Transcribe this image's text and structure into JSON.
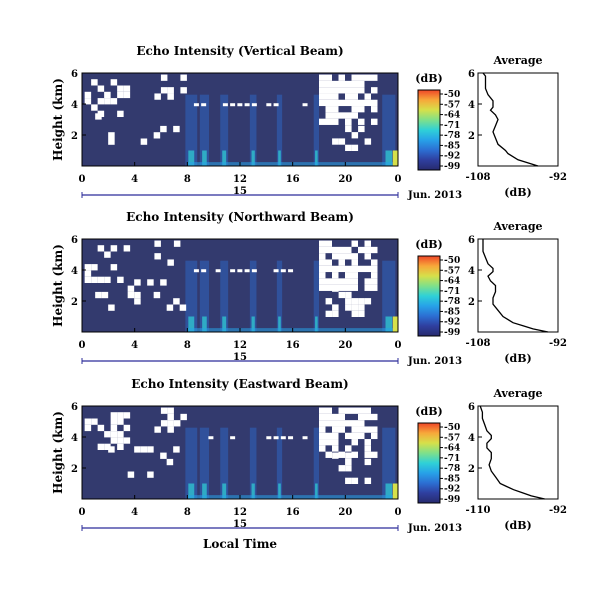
{
  "figure": {
    "xlabel": "Local Time",
    "date_label": "Jun. 2013",
    "day_label": "15"
  },
  "colors": {
    "background_field": "#333a6e",
    "no_data": "#ffffff",
    "colormap": [
      "#272a6e",
      "#2f3f9f",
      "#2c6fd3",
      "#27a2e8",
      "#2fd1d7",
      "#7fe08a",
      "#d6e04a",
      "#f7a83a",
      "#ef4628"
    ]
  },
  "chart_data": [
    {
      "type": "heatmap",
      "title": "Echo Intensity (Vertical Beam)",
      "ylabel": "Height (km)",
      "x_ticks": [
        "0",
        "4",
        "8",
        "12",
        "16",
        "20",
        "0"
      ],
      "xlim": [
        0,
        24
      ],
      "y_ticks": [
        "2",
        "4",
        "6"
      ],
      "ylim": [
        0,
        6
      ],
      "colorbar": {
        "label": "(dB)",
        "ticks": [
          "-50",
          "-57",
          "-64",
          "-71",
          "-78",
          "-85",
          "-92",
          "-99"
        ]
      },
      "average_profile": {
        "title": "Average",
        "xlabel": "(dB)",
        "x_ticks": [
          "-108",
          "-92"
        ],
        "xlim": [
          -108,
          -92
        ],
        "y_ticks": [
          "2",
          "4",
          "6"
        ],
        "ylim": [
          0,
          6
        ],
        "x": [
          -96,
          -98,
          -100,
          -101,
          -102,
          -102.5,
          -104,
          -104.5,
          -105,
          -104.5,
          -104,
          -104.5,
          -105.5,
          -105,
          -105,
          -105,
          -106,
          -106.5,
          -106.5,
          -106.5,
          -107
        ],
        "y": [
          0,
          0.2,
          0.4,
          0.6,
          0.8,
          1,
          1.4,
          1.8,
          2.2,
          2.6,
          3.0,
          3.3,
          3.6,
          3.8,
          4.0,
          4.2,
          4.6,
          5.0,
          5.4,
          5.8,
          6.0
        ]
      }
    },
    {
      "type": "heatmap",
      "title": "Echo Intensity (Northward Beam)",
      "ylabel": "Height (km)",
      "x_ticks": [
        "0",
        "4",
        "8",
        "12",
        "16",
        "20",
        "0"
      ],
      "xlim": [
        0,
        24
      ],
      "y_ticks": [
        "2",
        "4",
        "6"
      ],
      "ylim": [
        0,
        6
      ],
      "colorbar": {
        "label": "(dB)",
        "ticks": [
          "-50",
          "-57",
          "-64",
          "-71",
          "-78",
          "-85",
          "-92",
          "-99"
        ]
      },
      "average_profile": {
        "title": "Average",
        "xlabel": "(dB)",
        "x_ticks": [
          "-108",
          "-92"
        ],
        "xlim": [
          -108,
          -92
        ],
        "y_ticks": [
          "2",
          "4",
          "6"
        ],
        "ylim": [
          0,
          6
        ],
        "x": [
          -94,
          -97,
          -99,
          -101,
          -102,
          -103,
          -104,
          -105,
          -105,
          -104.5,
          -104.5,
          -105.5,
          -106,
          -105,
          -105,
          -106,
          -106.5,
          -107,
          -107,
          -107
        ],
        "y": [
          0,
          0.2,
          0.4,
          0.6,
          0.8,
          1,
          1.4,
          1.8,
          2.2,
          2.6,
          3.0,
          3.3,
          3.6,
          3.9,
          4.1,
          4.4,
          4.8,
          5.2,
          5.6,
          6.0
        ]
      }
    },
    {
      "type": "heatmap",
      "title": "Echo Intensity (Eastward Beam)",
      "ylabel": "Height (km)",
      "x_ticks": [
        "0",
        "4",
        "8",
        "12",
        "16",
        "20",
        "0"
      ],
      "xlim": [
        0,
        24
      ],
      "y_ticks": [
        "2",
        "4",
        "6"
      ],
      "ylim": [
        0,
        6
      ],
      "colorbar": {
        "label": "(dB)",
        "ticks": [
          "-50",
          "-57",
          "-64",
          "-71",
          "-78",
          "-85",
          "-92",
          "-99"
        ]
      },
      "average_profile": {
        "title": "Average",
        "xlabel": "(dB)",
        "x_ticks": [
          "-110",
          "-92"
        ],
        "xlim": [
          -110,
          -92
        ],
        "y_ticks": [
          "2",
          "4",
          "6"
        ],
        "ylim": [
          0,
          6
        ],
        "x": [
          -95,
          -98,
          -100,
          -102,
          -103.5,
          -105,
          -106,
          -107,
          -107.5,
          -107,
          -107,
          -108,
          -108,
          -107,
          -107,
          -108,
          -108.5,
          -109,
          -109,
          -109.5
        ],
        "y": [
          0,
          0.2,
          0.4,
          0.6,
          0.8,
          1,
          1.4,
          1.8,
          2.2,
          2.6,
          3.0,
          3.3,
          3.6,
          3.9,
          4.1,
          4.4,
          4.8,
          5.2,
          5.6,
          6.0
        ]
      }
    }
  ]
}
